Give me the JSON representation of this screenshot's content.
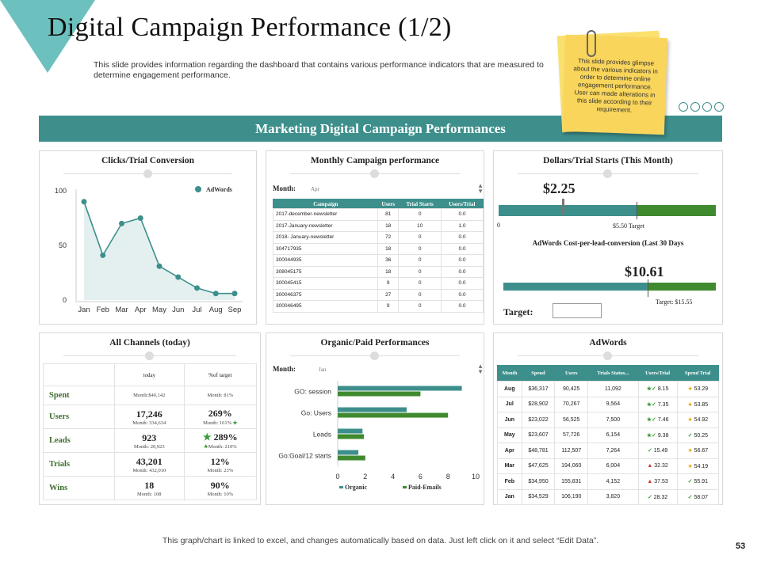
{
  "title": "Digital Campaign Performance (1/2)",
  "subtitle": "This slide provides information regarding the dashboard that contains various performance indicators that are measured to determine engagement performance.",
  "note": "This slide provides glimpse about the various indicators in order to determine online engagement performance. User can made alterations in this slide according to their requirement.",
  "banner": "Marketing Digital Campaign Performances",
  "colors": {
    "accent": "#3d8f8c",
    "green": "#3f8a2e"
  },
  "panels": {
    "clicks": {
      "title": "Clicks/Trial Conversion"
    },
    "monthly": {
      "title": "Monthly Campaign performance"
    },
    "dollars": {
      "title": "Dollars/Trial  Starts (This Month)"
    },
    "channels": {
      "title": "All Channels (today)"
    },
    "organic": {
      "title": "Organic/Paid Performances"
    },
    "adwords": {
      "title": "AdWords"
    }
  },
  "chart_data": [
    {
      "type": "area",
      "title": "Clicks/Trial Conversion",
      "categories": [
        "Jan",
        "Feb",
        "Mar",
        "Apr",
        "May",
        "Jun",
        "Jul",
        "Aug",
        "Sep"
      ],
      "series": [
        {
          "name": "AdWords",
          "values": [
            90,
            41,
            70,
            75,
            31,
            21,
            11,
            6,
            6
          ]
        }
      ],
      "ylim": [
        0,
        100
      ],
      "yticks": [
        0,
        50,
        100
      ],
      "legend": "top-right"
    },
    {
      "type": "bar",
      "orientation": "horizontal",
      "title": "Organic/Paid Performances",
      "categories": [
        "GO: session",
        "Go: Users",
        "Leads",
        "Go:Goal/12 starts"
      ],
      "series": [
        {
          "name": "Organic",
          "values": [
            9.0,
            5.0,
            1.8,
            1.5
          ]
        },
        {
          "name": "Paid-Emails",
          "values": [
            6.0,
            8.0,
            1.9,
            2.0
          ]
        }
      ],
      "xlim": [
        0,
        10
      ],
      "xticks": [
        0,
        2,
        4,
        6,
        8,
        10
      ],
      "legend": "bottom"
    }
  ],
  "monthly": {
    "month_label": "Month:",
    "month_value": "Apr",
    "columns": [
      "Campaign",
      "Users",
      "Trial Starts",
      "Users/Trial"
    ],
    "rows": [
      [
        "2017-december-newsletter",
        "81",
        "0",
        "0.0"
      ],
      [
        "2017-January-newsletter",
        "18",
        "10",
        "1.0"
      ],
      [
        "2018- January-newsletter",
        "72",
        "0",
        "0.0"
      ],
      [
        "304717935",
        "18",
        "0",
        "0.0"
      ],
      [
        "300044935",
        "36",
        "0",
        "0.0"
      ],
      [
        "308045175",
        "18",
        "0",
        "0.0"
      ],
      [
        "300045415",
        "9",
        "0",
        "0.0"
      ],
      [
        "300046375",
        "27",
        "0",
        "0.0"
      ],
      [
        "300046495",
        "9",
        "0",
        "0.0"
      ]
    ]
  },
  "dollars": {
    "value1": "$2.25",
    "axis_zero": "0",
    "target1": "$5.50 Target",
    "cpl_title": "AdWords Cost-per-lead-conversion (Last 30 Days",
    "value2": "$10.61",
    "target2": "Target: $15.55",
    "target_label": "Target:"
  },
  "channels": {
    "head_today": "today",
    "head_target": "%of target",
    "rows": [
      {
        "label": "Spent",
        "today": "Month:$40,142",
        "today_sub": "",
        "target": "Month: 81%",
        "target_sub": ""
      },
      {
        "label": "Users",
        "today": "17,246",
        "today_sub": "Month: 334,634",
        "target": "269%",
        "target_sub": "Month: 161%"
      },
      {
        "label": "Leads",
        "today": "923",
        "today_sub": "Month: 20,923",
        "target": "289%",
        "target_sub": "Month: 210%"
      },
      {
        "label": "Trials",
        "today": "43,201",
        "today_sub": "Month: 432,010",
        "target": "12%",
        "target_sub": "Month: 23%"
      },
      {
        "label": "Wins",
        "today": "18",
        "today_sub": "Month: 108",
        "target": "90%",
        "target_sub": "Month: 10%"
      }
    ]
  },
  "organic": {
    "month_label": "Month:",
    "month_value": "Jan"
  },
  "adwords": {
    "columns": [
      "Month",
      "Spend",
      "Users",
      "Trials Status...",
      "Users/Trial",
      "Spend Trial"
    ],
    "rows": [
      [
        "Aug",
        "$36,317",
        "90,425",
        "11,092",
        "8.15",
        "53.29"
      ],
      [
        "Jul",
        "$28,902",
        "70,267",
        "9,564",
        "7.35",
        "53.85"
      ],
      [
        "Jun",
        "$23,022",
        "56,525",
        "7,500",
        "7.46",
        "54.92"
      ],
      [
        "May",
        "$23,607",
        "57,726",
        "6,154",
        "9.38",
        "50.25"
      ],
      [
        "Apr",
        "$48,781",
        "112,507",
        "7,264",
        "15.49",
        "56.67"
      ],
      [
        "Mar",
        "$47,625",
        "194,060",
        "6,004",
        "32.32",
        "54.19"
      ],
      [
        "Feb",
        "$34,950",
        "155,831",
        "4,152",
        "37.53",
        "55.91"
      ],
      [
        "Jan",
        "$34,529",
        "106,190",
        "3,820",
        "28.32",
        "58.07"
      ]
    ]
  },
  "footer": "This graph/chart is linked to excel,  and changes automatically based on data. Just left click on it and select “Edit Data”.",
  "page_number": "53"
}
